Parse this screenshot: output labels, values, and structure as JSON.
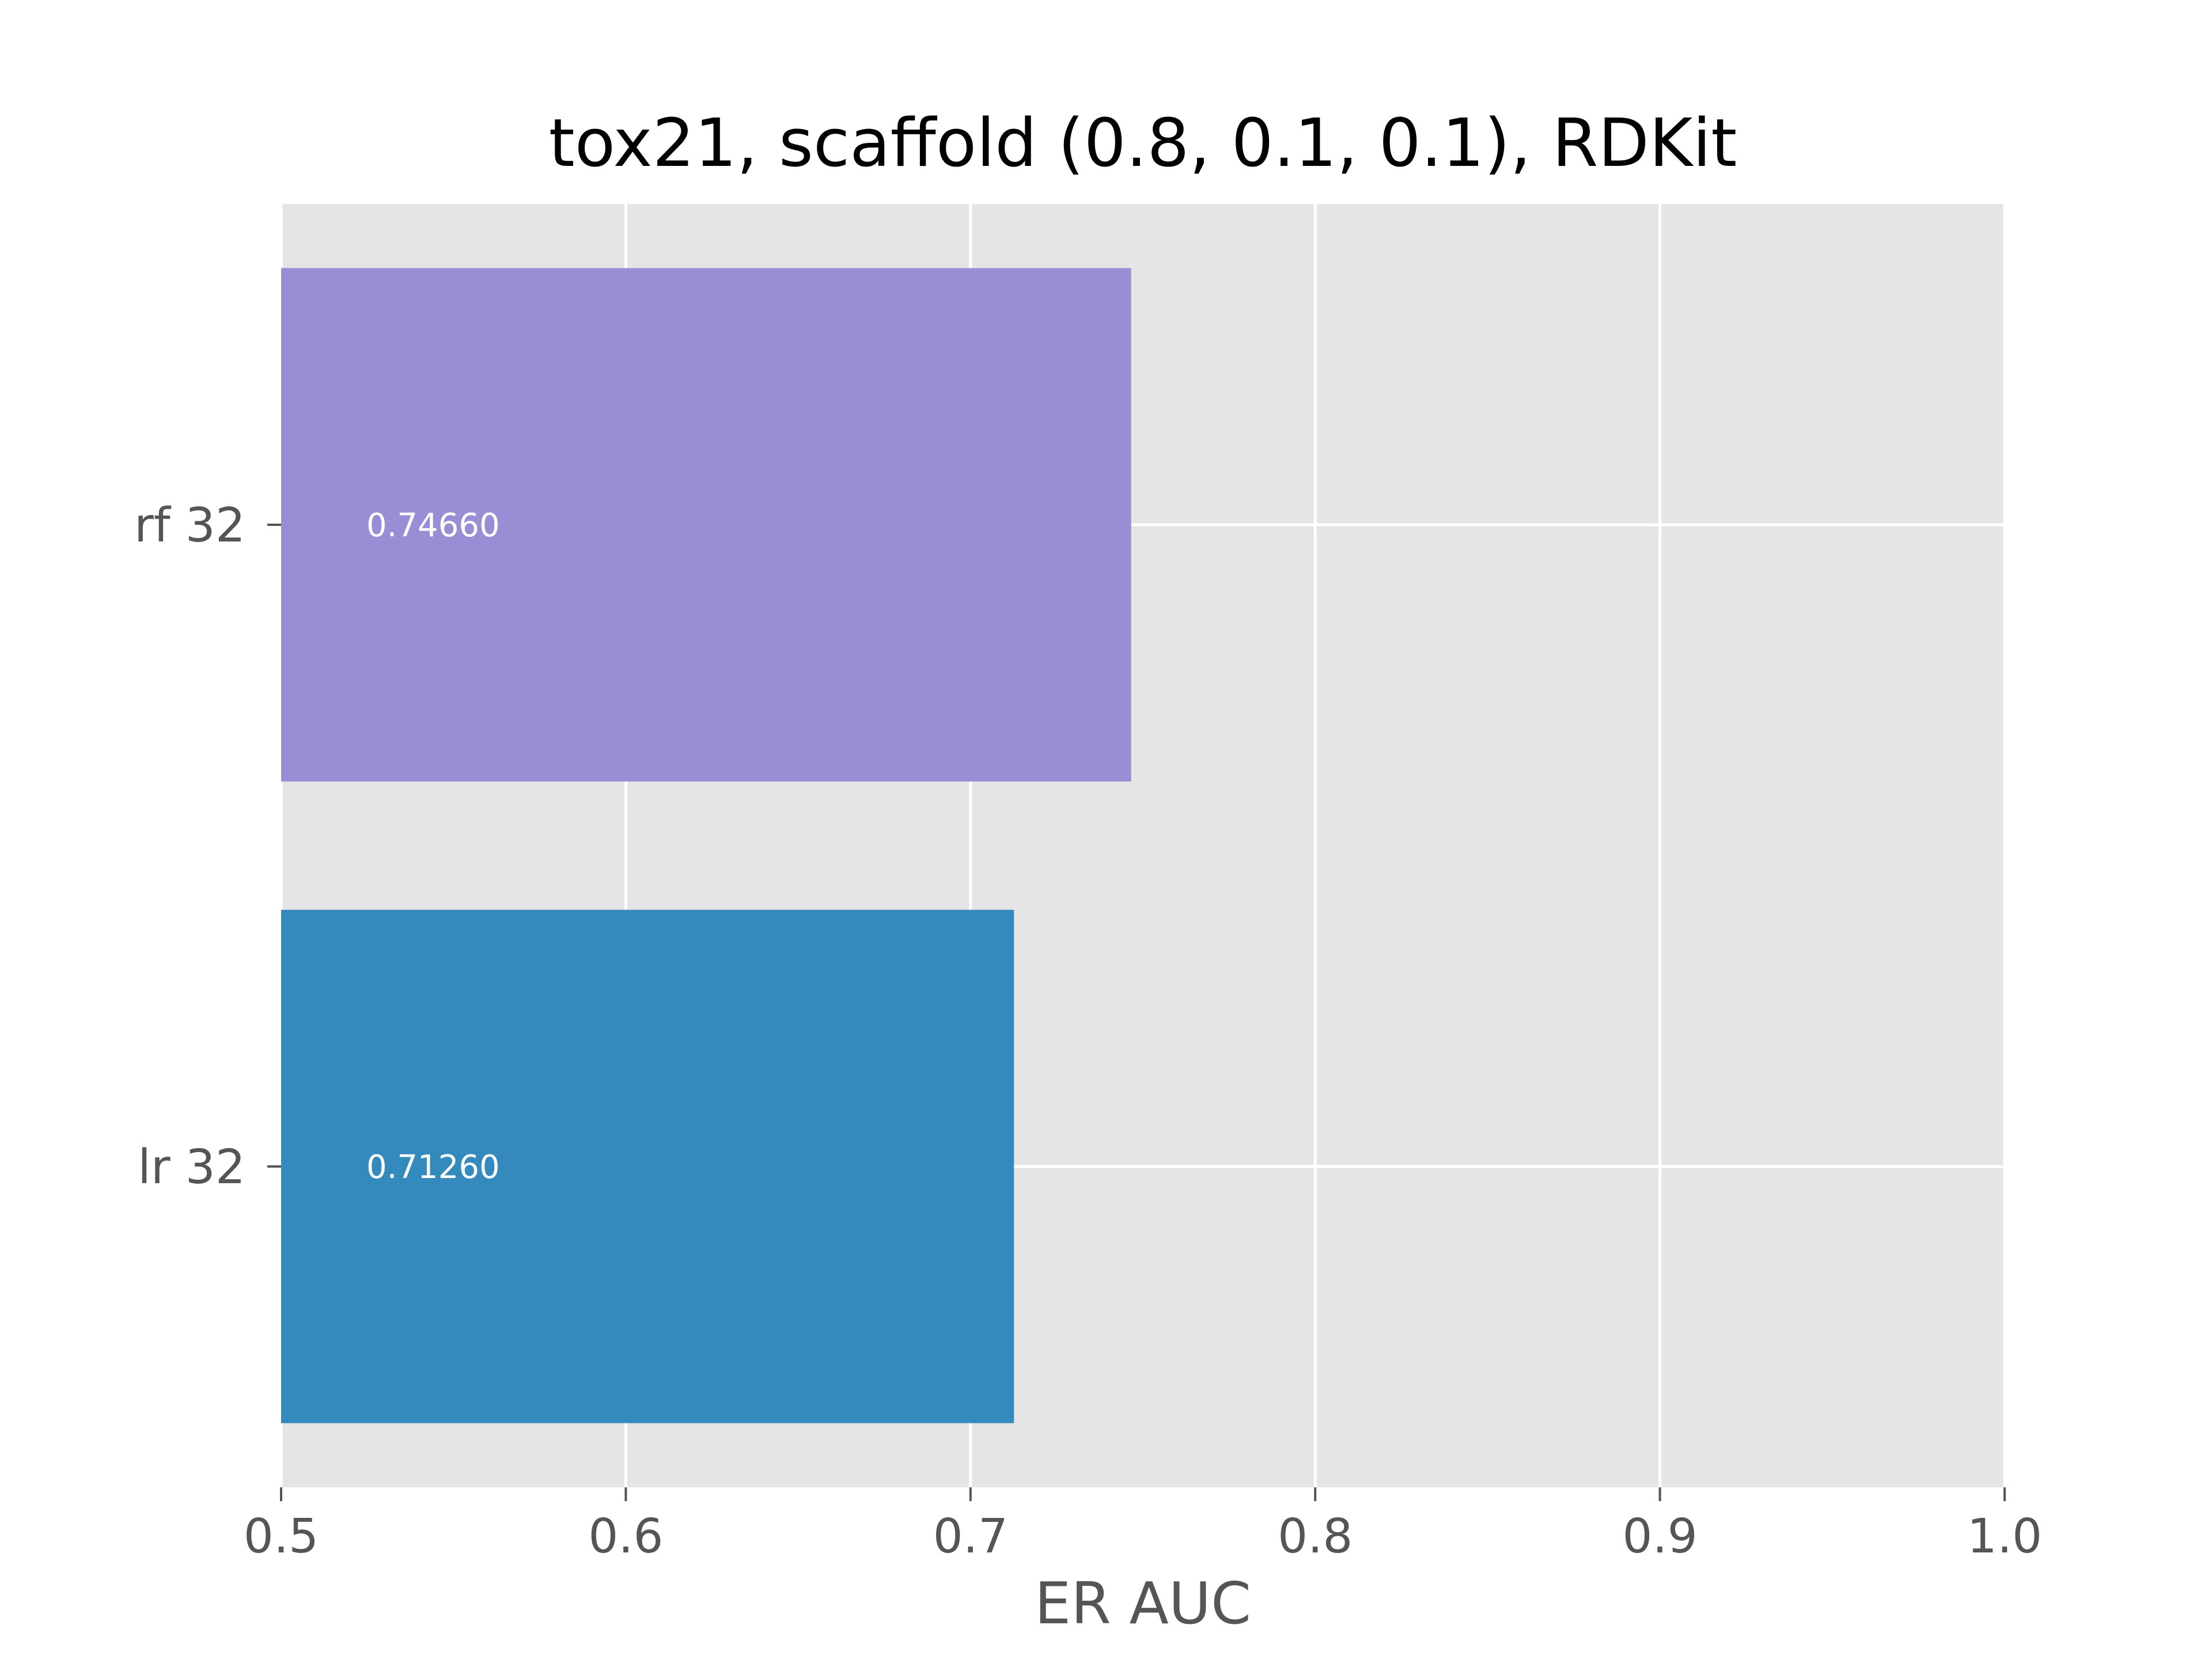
{
  "chart_data": {
    "type": "bar",
    "orientation": "horizontal",
    "title": "tox21, scaffold (0.8, 0.1, 0.1), RDKit",
    "xlabel": "ER AUC",
    "ylabel": "",
    "xlim": [
      0.5,
      1.0
    ],
    "x_ticks": [
      "0.5",
      "0.6",
      "0.7",
      "0.8",
      "0.9",
      "1.0"
    ],
    "categories": [
      "rf 32",
      "lr 32"
    ],
    "values": [
      0.7466,
      0.7126
    ],
    "value_labels": [
      "0.74660",
      "0.71260"
    ],
    "bar_colors": [
      "#988ED5",
      "#348ABD"
    ],
    "grid": true,
    "legend": false,
    "style": {
      "plot_background": "#E5E5E5",
      "grid_color": "#FFFFFF",
      "tick_label_color": "#555555",
      "title_color": "#000000"
    }
  }
}
